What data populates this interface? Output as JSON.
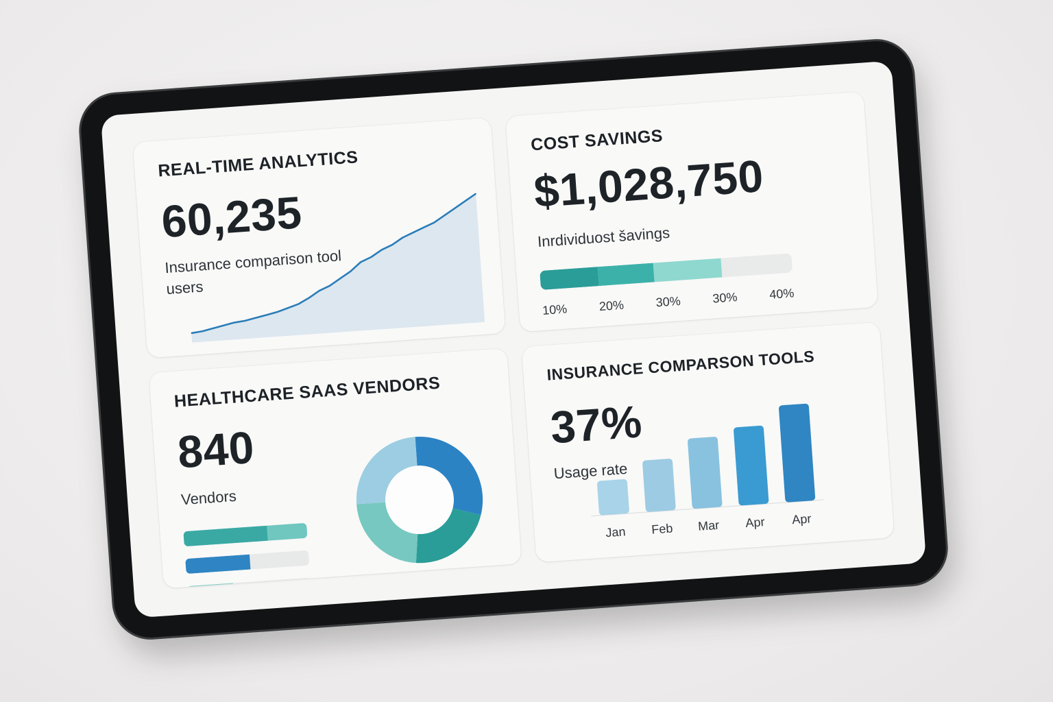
{
  "cards": {
    "analytics": {
      "title": "REAL-TIME ANALYTICS",
      "value": "60,235",
      "subtitle": "Insurance comparison tool users"
    },
    "savings": {
      "title": "COST SAVINGS",
      "value": "$1,028,750",
      "subtitle": "Inrdividuost šavings",
      "ticks": [
        "10%",
        "20%",
        "30%",
        "30%",
        "40%"
      ],
      "segments": [
        {
          "fraction": 0.23,
          "color": "#2a9d98"
        },
        {
          "fraction": 0.22,
          "color": "#3cb1aa"
        },
        {
          "fraction": 0.27,
          "color": "#8fd8cf"
        },
        {
          "fraction": 0.28,
          "color": "#e9eaea"
        }
      ]
    },
    "vendors": {
      "title": "HEALTHCARE SAAS VENDORS",
      "value": "840",
      "subtitle": "Vendors",
      "progress_bars": [
        {
          "fraction": 0.68,
          "color": "#3aa9a4",
          "rest_color": "#6fc7bf"
        },
        {
          "fraction": 0.52,
          "color": "#2f85c3",
          "rest_color": "#e8e9e9"
        },
        {
          "fraction": 0.37,
          "color": "#82d1c6",
          "rest_color": "#e8e9e9"
        }
      ],
      "donut": [
        {
          "fraction": 0.3,
          "color": "#2b83c4"
        },
        {
          "fraction": 0.22,
          "color": "#2a9d98"
        },
        {
          "fraction": 0.23,
          "color": "#76c8c0"
        },
        {
          "fraction": 0.25,
          "color": "#9ccde2"
        }
      ]
    },
    "usage": {
      "title": "INSURANCE COMPARSON TOOLS",
      "value": "37%",
      "subtitle": "Usage rate"
    }
  },
  "chart_data": [
    {
      "type": "area",
      "x": [
        1,
        2,
        3,
        4,
        5,
        6,
        7,
        8,
        9,
        10,
        11,
        12,
        13,
        14,
        15,
        16,
        17,
        18,
        19,
        20,
        21,
        22,
        23,
        24,
        25,
        26,
        27,
        28
      ],
      "values": [
        5,
        6,
        8,
        10,
        12,
        13,
        15,
        17,
        19,
        22,
        25,
        30,
        36,
        40,
        46,
        52,
        60,
        64,
        70,
        74,
        80,
        84,
        88,
        92,
        98,
        104,
        110,
        116
      ],
      "color": "#2a7db8",
      "fill": "#dde7ef",
      "ylim": [
        0,
        120
      ],
      "grid": false
    },
    {
      "type": "bar",
      "categories": [
        "Jan",
        "Feb",
        "Mar",
        "Apr",
        "Apr"
      ],
      "values": [
        22,
        33,
        45,
        50,
        62
      ],
      "colors": [
        "#a8d3e8",
        "#9dcbe3",
        "#88c2df",
        "#3a9bd2",
        "#2f86c2"
      ],
      "ylim": [
        0,
        70
      ],
      "grid": false
    }
  ]
}
